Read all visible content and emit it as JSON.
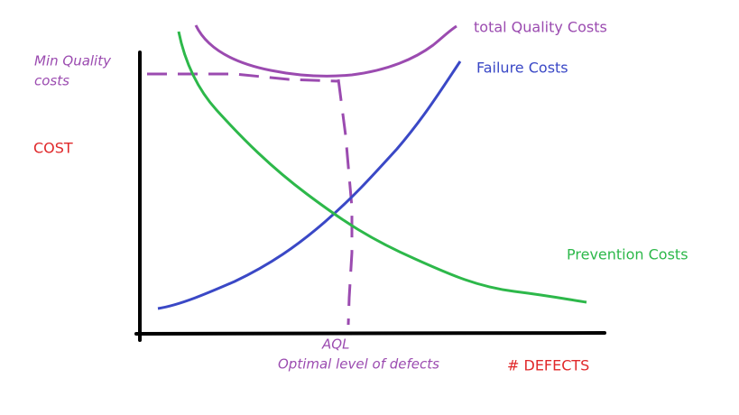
{
  "total_quality_costs": "total Quality Costs",
  "failure_costs": "Failure Costs",
  "min_quality_costs": [
    "Min Quality",
    "costs"
  ],
  "y_axis_label": "COST",
  "prevention_costs": "Prevention Costs",
  "aql": "AQL",
  "optimal_level": "Optimal level of defects",
  "x_axis_label": "# DEFECTS"
}
